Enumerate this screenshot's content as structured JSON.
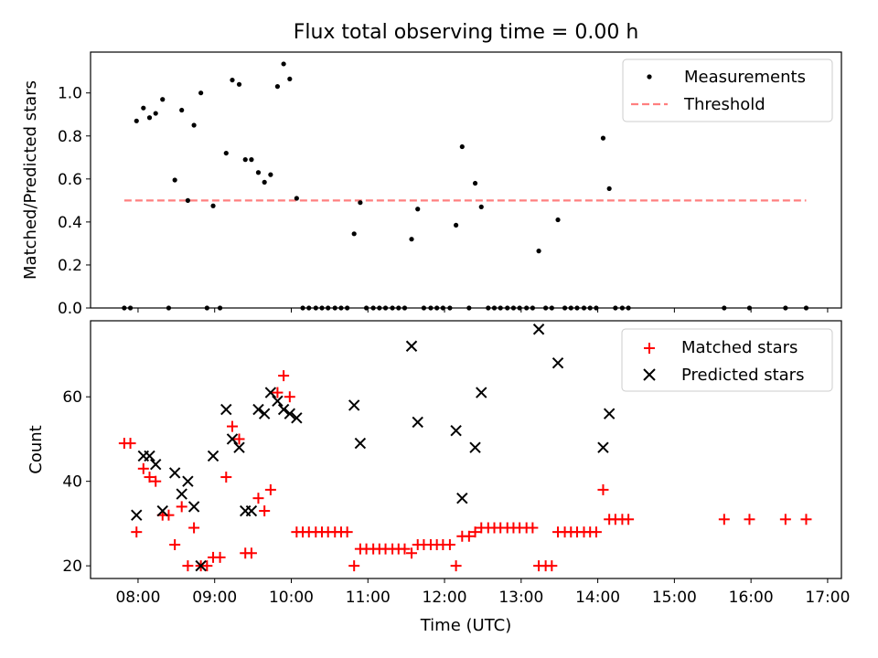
{
  "chart_data": [
    {
      "type": "scatter",
      "title": "Flux total observing time = 0.00 h",
      "ylabel": "Matched/Predicted stars",
      "xlabel": "",
      "xlim": [
        7.38,
        17.18
      ],
      "ylim": [
        0.0,
        1.19
      ],
      "yticks": [
        0.0,
        0.2,
        0.4,
        0.6,
        0.8,
        1.0
      ],
      "ytick_labels": [
        "0.0",
        "0.2",
        "0.4",
        "0.6",
        "0.8",
        "1.0"
      ],
      "legend": {
        "position": "top-right",
        "measurements": "Measurements",
        "threshold": "Threshold"
      },
      "threshold": {
        "value": 0.5,
        "x_range": [
          7.82,
          16.72
        ],
        "color": "#ff7f7f"
      },
      "series": [
        {
          "name": "Measurements",
          "color": "#000000",
          "points": [
            [
              7.82,
              0.0
            ],
            [
              7.9,
              0.0
            ],
            [
              7.98,
              0.87
            ],
            [
              8.07,
              0.93
            ],
            [
              8.15,
              0.885
            ],
            [
              8.23,
              0.905
            ],
            [
              8.32,
              0.97
            ],
            [
              8.4,
              0.0
            ],
            [
              8.48,
              0.595
            ],
            [
              8.57,
              0.92
            ],
            [
              8.65,
              0.5
            ],
            [
              8.73,
              0.85
            ],
            [
              8.82,
              1.0
            ],
            [
              8.9,
              0.0
            ],
            [
              8.98,
              0.475
            ],
            [
              9.07,
              0.0
            ],
            [
              9.15,
              0.72
            ],
            [
              9.23,
              1.06
            ],
            [
              9.32,
              1.04
            ],
            [
              9.4,
              0.69
            ],
            [
              9.48,
              0.69
            ],
            [
              9.57,
              0.63
            ],
            [
              9.65,
              0.585
            ],
            [
              9.73,
              0.62
            ],
            [
              9.82,
              1.03
            ],
            [
              9.9,
              1.135
            ],
            [
              9.98,
              1.065
            ],
            [
              10.07,
              0.51
            ],
            [
              10.15,
              0.0
            ],
            [
              10.23,
              0.0
            ],
            [
              10.32,
              0.0
            ],
            [
              10.4,
              0.0
            ],
            [
              10.48,
              0.0
            ],
            [
              10.57,
              0.0
            ],
            [
              10.65,
              0.0
            ],
            [
              10.73,
              0.0
            ],
            [
              10.82,
              0.345
            ],
            [
              10.9,
              0.49
            ],
            [
              10.98,
              0.0
            ],
            [
              11.07,
              0.0
            ],
            [
              11.15,
              0.0
            ],
            [
              11.23,
              0.0
            ],
            [
              11.32,
              0.0
            ],
            [
              11.4,
              0.0
            ],
            [
              11.48,
              0.0
            ],
            [
              11.57,
              0.32
            ],
            [
              11.65,
              0.46
            ],
            [
              11.73,
              0.0
            ],
            [
              11.82,
              0.0
            ],
            [
              11.9,
              0.0
            ],
            [
              11.98,
              0.0
            ],
            [
              12.07,
              0.0
            ],
            [
              12.15,
              0.385
            ],
            [
              12.23,
              0.75
            ],
            [
              12.32,
              0.0
            ],
            [
              12.4,
              0.58
            ],
            [
              12.48,
              0.47
            ],
            [
              12.57,
              0.0
            ],
            [
              12.65,
              0.0
            ],
            [
              12.73,
              0.0
            ],
            [
              12.82,
              0.0
            ],
            [
              12.9,
              0.0
            ],
            [
              12.98,
              0.0
            ],
            [
              13.07,
              0.0
            ],
            [
              13.15,
              0.0
            ],
            [
              13.23,
              0.265
            ],
            [
              13.32,
              0.0
            ],
            [
              13.4,
              0.0
            ],
            [
              13.48,
              0.41
            ],
            [
              13.57,
              0.0
            ],
            [
              13.65,
              0.0
            ],
            [
              13.73,
              0.0
            ],
            [
              13.82,
              0.0
            ],
            [
              13.9,
              0.0
            ],
            [
              13.98,
              0.0
            ],
            [
              14.07,
              0.79
            ],
            [
              14.15,
              0.555
            ],
            [
              14.23,
              0.0
            ],
            [
              14.32,
              0.0
            ],
            [
              14.4,
              0.0
            ],
            [
              15.65,
              0.0
            ],
            [
              15.98,
              0.0
            ],
            [
              16.45,
              0.0
            ],
            [
              16.72,
              0.0
            ]
          ]
        }
      ]
    },
    {
      "type": "scatter",
      "title": "",
      "ylabel": "Count",
      "xlabel": "Time (UTC)",
      "xlim": [
        7.38,
        17.18
      ],
      "ylim": [
        17,
        78
      ],
      "yticks": [
        20,
        40,
        60
      ],
      "ytick_labels": [
        "20",
        "40",
        "60"
      ],
      "xticks": [
        8,
        9,
        10,
        11,
        12,
        13,
        14,
        15,
        16,
        17
      ],
      "xtick_labels": [
        "08:00",
        "09:00",
        "10:00",
        "11:00",
        "12:00",
        "13:00",
        "14:00",
        "15:00",
        "16:00",
        "17:00"
      ],
      "legend": {
        "position": "top-right",
        "matched": "Matched stars",
        "predicted": "Predicted stars"
      },
      "series": [
        {
          "name": "Matched stars",
          "color": "#ff0000",
          "points": [
            [
              7.82,
              49
            ],
            [
              7.9,
              49
            ],
            [
              7.98,
              28
            ],
            [
              8.07,
              43
            ],
            [
              8.15,
              41
            ],
            [
              8.23,
              40
            ],
            [
              8.32,
              32
            ],
            [
              8.4,
              32
            ],
            [
              8.48,
              25
            ],
            [
              8.57,
              34
            ],
            [
              8.65,
              20
            ],
            [
              8.73,
              29
            ],
            [
              8.82,
              20
            ],
            [
              8.9,
              20
            ],
            [
              8.98,
              22
            ],
            [
              9.07,
              22
            ],
            [
              9.15,
              41
            ],
            [
              9.23,
              53
            ],
            [
              9.32,
              50
            ],
            [
              9.4,
              23
            ],
            [
              9.48,
              23
            ],
            [
              9.57,
              36
            ],
            [
              9.65,
              33
            ],
            [
              9.73,
              38
            ],
            [
              9.82,
              61
            ],
            [
              9.9,
              65
            ],
            [
              9.98,
              60
            ],
            [
              10.07,
              28
            ],
            [
              10.15,
              28
            ],
            [
              10.23,
              28
            ],
            [
              10.32,
              28
            ],
            [
              10.4,
              28
            ],
            [
              10.48,
              28
            ],
            [
              10.57,
              28
            ],
            [
              10.65,
              28
            ],
            [
              10.73,
              28
            ],
            [
              10.82,
              20
            ],
            [
              10.9,
              24
            ],
            [
              10.98,
              24
            ],
            [
              11.07,
              24
            ],
            [
              11.15,
              24
            ],
            [
              11.23,
              24
            ],
            [
              11.32,
              24
            ],
            [
              11.4,
              24
            ],
            [
              11.48,
              24
            ],
            [
              11.57,
              23
            ],
            [
              11.65,
              25
            ],
            [
              11.73,
              25
            ],
            [
              11.82,
              25
            ],
            [
              11.9,
              25
            ],
            [
              11.98,
              25
            ],
            [
              12.07,
              25
            ],
            [
              12.15,
              20
            ],
            [
              12.23,
              27
            ],
            [
              12.32,
              27
            ],
            [
              12.4,
              28
            ],
            [
              12.48,
              29
            ],
            [
              12.57,
              29
            ],
            [
              12.65,
              29
            ],
            [
              12.73,
              29
            ],
            [
              12.82,
              29
            ],
            [
              12.9,
              29
            ],
            [
              12.98,
              29
            ],
            [
              13.07,
              29
            ],
            [
              13.15,
              29
            ],
            [
              13.23,
              20
            ],
            [
              13.32,
              20
            ],
            [
              13.4,
              20
            ],
            [
              13.48,
              28
            ],
            [
              13.57,
              28
            ],
            [
              13.65,
              28
            ],
            [
              13.73,
              28
            ],
            [
              13.82,
              28
            ],
            [
              13.9,
              28
            ],
            [
              13.98,
              28
            ],
            [
              14.07,
              38
            ],
            [
              14.15,
              31
            ],
            [
              14.23,
              31
            ],
            [
              14.32,
              31
            ],
            [
              14.4,
              31
            ],
            [
              15.65,
              31
            ],
            [
              15.98,
              31
            ],
            [
              16.45,
              31
            ],
            [
              16.72,
              31
            ]
          ]
        },
        {
          "name": "Predicted stars",
          "color": "#000000",
          "points": [
            [
              7.98,
              32
            ],
            [
              8.07,
              46
            ],
            [
              8.15,
              46
            ],
            [
              8.23,
              44
            ],
            [
              8.32,
              33
            ],
            [
              8.48,
              42
            ],
            [
              8.57,
              37
            ],
            [
              8.65,
              40
            ],
            [
              8.73,
              34
            ],
            [
              8.82,
              20
            ],
            [
              8.98,
              46
            ],
            [
              9.15,
              57
            ],
            [
              9.23,
              50
            ],
            [
              9.32,
              48
            ],
            [
              9.4,
              33
            ],
            [
              9.48,
              33
            ],
            [
              9.57,
              57
            ],
            [
              9.65,
              56
            ],
            [
              9.73,
              61
            ],
            [
              9.82,
              59
            ],
            [
              9.9,
              57
            ],
            [
              9.98,
              56
            ],
            [
              10.07,
              55
            ],
            [
              10.82,
              58
            ],
            [
              10.9,
              49
            ],
            [
              11.57,
              72
            ],
            [
              11.65,
              54
            ],
            [
              12.15,
              52
            ],
            [
              12.23,
              36
            ],
            [
              12.4,
              48
            ],
            [
              12.48,
              61
            ],
            [
              13.23,
              76
            ],
            [
              13.48,
              68
            ],
            [
              14.07,
              48
            ],
            [
              14.15,
              56
            ]
          ]
        }
      ]
    }
  ]
}
